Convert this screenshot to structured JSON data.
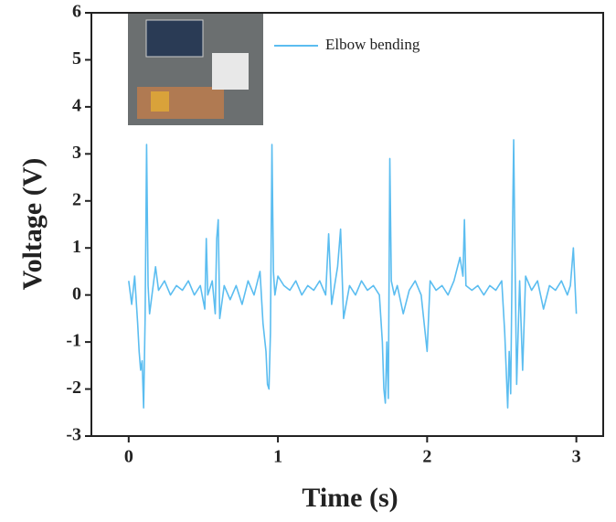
{
  "chart_data": {
    "type": "line",
    "x_label": "Time (s)",
    "y_label": "Voltage (V)",
    "xlim": [
      -0.25,
      3.18
    ],
    "ylim": [
      -3,
      6
    ],
    "xticks": [
      0,
      1,
      2,
      3
    ],
    "yticks": [
      -3,
      -2,
      -1,
      0,
      1,
      2,
      3,
      4,
      5,
      6
    ],
    "legend": "upper center",
    "x": [
      0,
      0.02,
      0.04,
      0.06,
      0.07,
      0.08,
      0.09,
      0.1,
      0.11,
      0.12,
      0.13,
      0.14,
      0.16,
      0.18,
      0.2,
      0.24,
      0.28,
      0.32,
      0.36,
      0.4,
      0.44,
      0.48,
      0.51,
      0.52,
      0.53,
      0.56,
      0.58,
      0.59,
      0.6,
      0.61,
      0.64,
      0.68,
      0.72,
      0.76,
      0.8,
      0.84,
      0.88,
      0.9,
      0.92,
      0.93,
      0.94,
      0.95,
      0.96,
      0.97,
      0.98,
      1.0,
      1.04,
      1.08,
      1.12,
      1.16,
      1.2,
      1.24,
      1.28,
      1.32,
      1.34,
      1.36,
      1.4,
      1.42,
      1.44,
      1.48,
      1.52,
      1.56,
      1.6,
      1.64,
      1.68,
      1.7,
      1.71,
      1.72,
      1.73,
      1.74,
      1.75,
      1.76,
      1.78,
      1.8,
      1.84,
      1.88,
      1.92,
      1.96,
      2.0,
      2.02,
      2.06,
      2.1,
      2.14,
      2.18,
      2.22,
      2.24,
      2.25,
      2.26,
      2.3,
      2.34,
      2.38,
      2.42,
      2.46,
      2.5,
      2.52,
      2.53,
      2.54,
      2.55,
      2.56,
      2.57,
      2.58,
      2.59,
      2.6,
      2.62,
      2.64,
      2.66,
      2.7,
      2.74,
      2.78,
      2.82,
      2.86,
      2.9,
      2.94,
      2.96,
      2.98,
      3.0
    ],
    "series": [
      {
        "name": "Elbow bending",
        "color": "#5bbdf0",
        "values": [
          0.3,
          -0.2,
          0.4,
          -0.6,
          -1.2,
          -1.6,
          -1.4,
          -2.4,
          -0.5,
          3.2,
          0.2,
          -0.4,
          0.1,
          0.6,
          0.1,
          0.3,
          0.0,
          0.2,
          0.1,
          0.3,
          0.0,
          0.2,
          -0.3,
          1.2,
          0.0,
          0.3,
          -0.4,
          1.2,
          1.6,
          -0.5,
          0.2,
          -0.1,
          0.2,
          -0.2,
          0.3,
          0.0,
          0.5,
          -0.6,
          -1.2,
          -1.9,
          -2.0,
          -0.8,
          3.2,
          0.5,
          0.0,
          0.4,
          0.2,
          0.1,
          0.3,
          0.0,
          0.2,
          0.1,
          0.3,
          0.0,
          1.3,
          -0.2,
          0.6,
          1.4,
          -0.5,
          0.2,
          0.0,
          0.3,
          0.1,
          0.2,
          0.0,
          -1.0,
          -2.0,
          -2.3,
          -1.0,
          -2.2,
          2.9,
          0.3,
          0.0,
          0.2,
          -0.4,
          0.1,
          0.3,
          0.0,
          -1.2,
          0.3,
          0.1,
          0.2,
          0.0,
          0.3,
          0.8,
          0.4,
          1.6,
          0.2,
          0.1,
          0.2,
          0.0,
          0.2,
          0.1,
          0.3,
          -0.8,
          -1.6,
          -2.4,
          -1.2,
          -2.1,
          0.8,
          3.3,
          0.5,
          -1.9,
          0.3,
          -1.6,
          0.4,
          0.1,
          0.3,
          -0.3,
          0.2,
          0.1,
          0.3,
          0.0,
          0.2,
          1.0,
          -0.4
        ]
      }
    ]
  }
}
